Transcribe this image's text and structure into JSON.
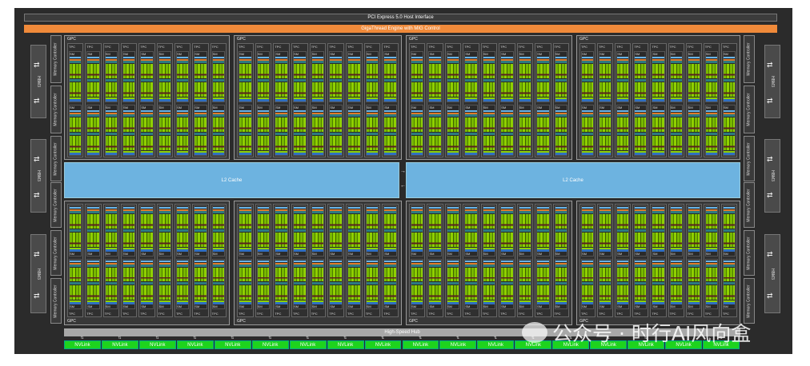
{
  "header": {
    "pcie": "PCI Express 5.0 Host Interface",
    "gigathread": "GigaThread Engine with MIG Control"
  },
  "hbm_label": "HBM3",
  "memory_controller_label": "Memory Controller",
  "gpc_label": "GPC",
  "tpc_label": "TPC",
  "sm_label": "SM",
  "l2": {
    "left": "L2 Cache",
    "right": "L2 Cache"
  },
  "hub": "High-Speed Hub",
  "nvlink_label": "NVLink",
  "nvlink_count": 18,
  "gpc_count": 8,
  "tpc_per_gpc": 9,
  "watermark": "公众号 · 时行AI风向盒",
  "colors": {
    "giga": "#f08a3a",
    "l2": "#6db3e0",
    "nvlink": "#1ed31e",
    "core": "#78b800"
  }
}
